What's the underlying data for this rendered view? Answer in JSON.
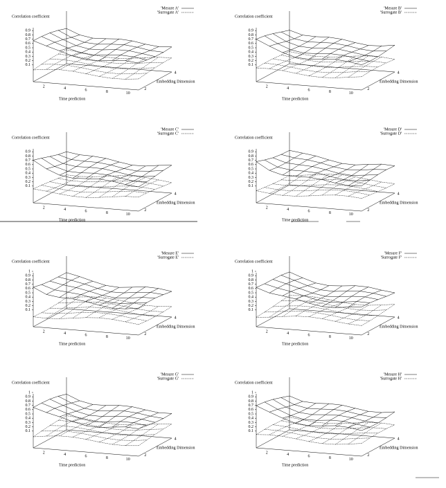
{
  "panels": [
    {
      "title": "Correlation coefficient",
      "legend": [
        "'Mesure A'",
        "'Surrogate A'"
      ],
      "x_label": "Time prediction",
      "depth_label": "Embedding Dimension",
      "value_ticks": [
        "0.1",
        "0.2",
        "0.3",
        "0.4",
        "0.5",
        "0.6",
        "0.7",
        "0.8",
        "0.9"
      ],
      "x_ticks": [
        "2",
        "4",
        "6",
        "8",
        "10"
      ],
      "depth_ticks": [
        "2",
        "4"
      ]
    },
    {
      "title": "Correlation coefficient",
      "legend": [
        "'Mesure B'",
        "'Surrogate B'"
      ],
      "x_label": "Time prediction",
      "depth_label": "Embedding Dimension",
      "value_ticks": [
        "0.1",
        "0.2",
        "0.3",
        "0.4",
        "0.5",
        "0.6",
        "0.7",
        "0.8",
        "0.9"
      ],
      "x_ticks": [
        "2",
        "4",
        "6",
        "8",
        "10"
      ],
      "depth_ticks": [
        "2",
        "4"
      ]
    },
    {
      "title": "Correlation coefficient",
      "legend": [
        "'Mesure C'",
        "'Surrogate C'"
      ],
      "x_label": "Time prediction",
      "depth_label": "Embedding Dimension",
      "value_ticks": [
        "0.1",
        "0.2",
        "0.3",
        "0.4",
        "0.5",
        "0.6",
        "0.7",
        "0.8",
        "0.9"
      ],
      "x_ticks": [
        "2",
        "4",
        "6",
        "8",
        "10"
      ],
      "depth_ticks": [
        "2",
        "4"
      ]
    },
    {
      "title": "Correlation coefficient",
      "legend": [
        "'Mesure D'",
        "'Surrogate D'"
      ],
      "x_label": "Time prediction",
      "depth_label": "Embedding Dimension",
      "value_ticks": [
        "0.1",
        "0.2",
        "0.3",
        "0.4",
        "0.5",
        "0.6",
        "0.7",
        "0.8",
        "0.9"
      ],
      "x_ticks": [
        "2",
        "4",
        "6",
        "8",
        "10"
      ],
      "depth_ticks": [
        "2",
        "4"
      ]
    },
    {
      "title": "Correlation coefficient",
      "legend": [
        "'Mesure E'",
        "'Surrogate E'"
      ],
      "x_label": "Time prediction",
      "depth_label": "Embedding Dimension",
      "value_ticks": [
        "0.1",
        "0.2",
        "0.3",
        "0.4",
        "0.5",
        "0.6",
        "0.7",
        "0.8",
        "0.9",
        "1"
      ],
      "x_ticks": [
        "2",
        "4",
        "6",
        "8",
        "10"
      ],
      "depth_ticks": [
        "2",
        "4"
      ]
    },
    {
      "title": "Correlation coefficient",
      "legend": [
        "'Mesure F'",
        "'Surrogate F'"
      ],
      "x_label": "Time prediction",
      "depth_label": "Embedding Dimension",
      "value_ticks": [
        "0.1",
        "0.2",
        "0.3",
        "0.4",
        "0.5",
        "0.6",
        "0.7",
        "0.8",
        "0.9",
        "1"
      ],
      "x_ticks": [
        "2",
        "4",
        "6",
        "8",
        "10"
      ],
      "depth_ticks": [
        "2",
        "4"
      ]
    },
    {
      "title": "Correlation coefficient",
      "legend": [
        "'Mesure G'",
        "'Surrogate G'"
      ],
      "x_label": "Time prediction",
      "depth_label": "Embedding Dimension",
      "value_ticks": [
        "0.1",
        "0.2",
        "0.3",
        "0.4",
        "0.5",
        "0.6",
        "0.7",
        "0.8",
        "0.9",
        "1"
      ],
      "x_ticks": [
        "2",
        "4",
        "6",
        "8",
        "10"
      ],
      "depth_ticks": [
        "2",
        "4"
      ]
    },
    {
      "title": "Correlation coefficient",
      "legend": [
        "'Mesure H'",
        "'Surrogate H'"
      ],
      "x_label": "Time prediction",
      "depth_label": "Embedding Dimension",
      "value_ticks": [
        "0.1",
        "0.2",
        "0.3",
        "0.4",
        "0.5",
        "0.6",
        "0.7",
        "0.8",
        "0.9",
        "1"
      ],
      "x_ticks": [
        "2",
        "4",
        "6",
        "8",
        "10"
      ],
      "depth_ticks": [
        "2",
        "4"
      ]
    }
  ]
}
